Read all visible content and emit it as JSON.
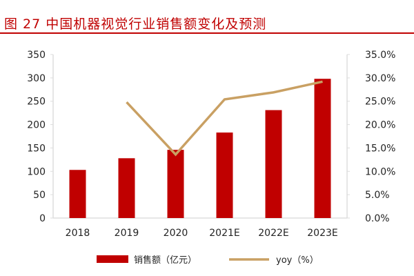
{
  "title": "图 27   中国机器视觉行业销售额变化及预测",
  "chart_data": {
    "type": "bar+line",
    "title": "图 27   中国机器视觉行业销售额变化及预测",
    "categories": [
      "2018",
      "2019",
      "2020",
      "2021E",
      "2022E",
      "2023E"
    ],
    "series": [
      {
        "name": "销售额（亿元）",
        "type": "bar",
        "axis": "left",
        "color": "#c00000",
        "values": [
          103,
          128,
          146,
          183,
          231,
          298
        ]
      },
      {
        "name": "yoy（%）",
        "type": "line",
        "axis": "right",
        "color": "#c9a063",
        "values": [
          null,
          24.8,
          13.6,
          25.4,
          26.9,
          29.2
        ]
      }
    ],
    "y_left": {
      "range": [
        0,
        350
      ],
      "ticks": [
        "0",
        "50",
        "100",
        "150",
        "200",
        "250",
        "300",
        "350"
      ]
    },
    "y_right": {
      "range": [
        0,
        35
      ],
      "ticks": [
        "0.0%",
        "5.0%",
        "10.0%",
        "15.0%",
        "20.0%",
        "25.0%",
        "30.0%",
        "35.0%"
      ]
    },
    "grid": false,
    "legend": "bottom"
  }
}
